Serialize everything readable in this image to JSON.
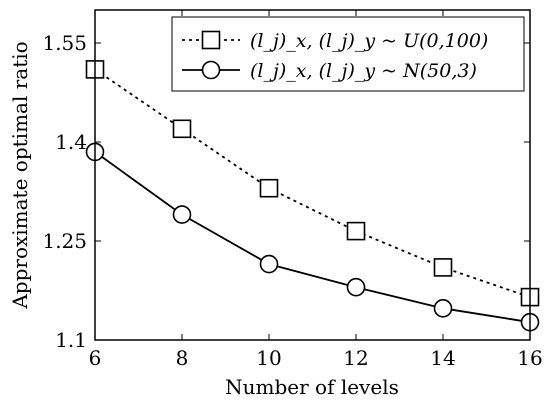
{
  "chart_data": {
    "type": "line",
    "xlabel": "Number of levels",
    "ylabel": "Approximate optimal ratio",
    "xlim": [
      6,
      16
    ],
    "ylim": [
      1.1,
      1.6
    ],
    "x_ticks": [
      "6",
      "8",
      "10",
      "12",
      "14",
      "16"
    ],
    "y_ticks": [
      "1.1",
      "1.25",
      "1.4",
      "1.55"
    ],
    "grid": false,
    "legend_position": "top-right",
    "x": [
      6,
      8,
      10,
      12,
      14,
      16
    ],
    "series": [
      {
        "name": "(l_j)_x, (l_j)_y ~ U(0,100)",
        "values": [
          1.51,
          1.42,
          1.33,
          1.265,
          1.21,
          1.165
        ],
        "marker": "square",
        "line_style": "dashed",
        "color": "#000000"
      },
      {
        "name": "(l_j)_x, (l_j)_y ~ N(50,3)",
        "values": [
          1.385,
          1.29,
          1.215,
          1.18,
          1.148,
          1.127
        ],
        "marker": "circle",
        "line_style": "solid",
        "color": "#000000"
      }
    ]
  }
}
